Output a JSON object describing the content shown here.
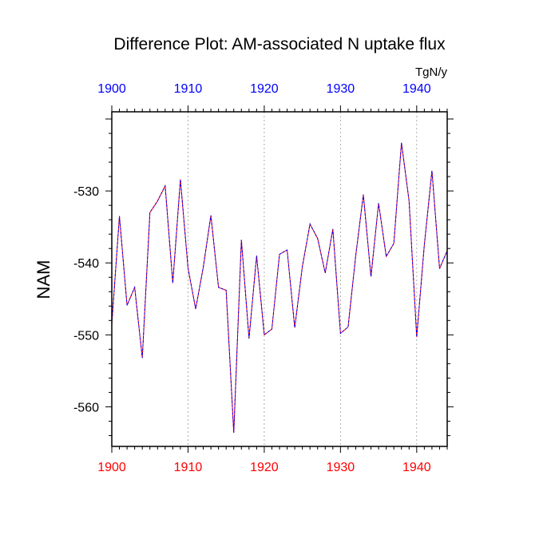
{
  "chart_data": {
    "type": "line",
    "title": "Difference Plot: AM-associated N uptake flux",
    "units": "TgN/y",
    "ylabel": "NAM",
    "xlim": [
      1900,
      1944
    ],
    "ylim": [
      -565.5,
      -519
    ],
    "xticks": [
      1900,
      1910,
      1920,
      1930,
      1940
    ],
    "yticks": [
      -530,
      -540,
      -550,
      -560
    ],
    "grid": "vertical dotted at major x ticks",
    "x": [
      1900,
      1901,
      1902,
      1903,
      1904,
      1905,
      1906,
      1907,
      1908,
      1909,
      1910,
      1911,
      1912,
      1913,
      1914,
      1915,
      1916,
      1917,
      1918,
      1919,
      1920,
      1921,
      1922,
      1923,
      1924,
      1925,
      1926,
      1927,
      1928,
      1929,
      1930,
      1931,
      1932,
      1933,
      1934,
      1935,
      1936,
      1937,
      1938,
      1939,
      1940,
      1941,
      1942,
      1943,
      1944
    ],
    "series": [
      {
        "color": "#ff0000",
        "values": [
          -548.5,
          -533.5,
          -545.9,
          -543.4,
          -553.2,
          -533.0,
          -531.4,
          -529.3,
          -542.8,
          -528.4,
          -540.7,
          -546.4,
          -540.6,
          -533.4,
          -543.4,
          -543.8,
          -563.6,
          -536.8,
          -550.5,
          -539.0,
          -550.0,
          -549.2,
          -538.8,
          -538.2,
          -549.0,
          -540.5,
          -534.6,
          -536.6,
          -541.4,
          -535.3,
          -549.8,
          -548.9,
          -539.0,
          -530.5,
          -541.9,
          -531.7,
          -539.1,
          -537.3,
          -523.3,
          -531.4,
          -550.3,
          -537.5,
          -527.2,
          -540.8,
          -538.3
        ]
      },
      {
        "color": "#0000ff",
        "values": [
          -548.5,
          -533.5,
          -545.9,
          -543.4,
          -553.2,
          -533.0,
          -531.4,
          -529.3,
          -542.8,
          -528.4,
          -540.7,
          -546.4,
          -540.6,
          -533.4,
          -543.4,
          -543.8,
          -563.6,
          -536.8,
          -550.5,
          -539.0,
          -550.0,
          -549.2,
          -538.8,
          -538.2,
          -549.0,
          -540.5,
          -534.6,
          -536.6,
          -541.4,
          -535.3,
          -549.8,
          -548.9,
          -539.0,
          -530.5,
          -541.9,
          -531.7,
          -539.1,
          -537.3,
          -523.3,
          -531.4,
          -550.3,
          -537.5,
          -527.2,
          -540.8,
          -538.3
        ]
      }
    ]
  },
  "colors": {
    "bottom_axis_labels": "#ff0000",
    "top_axis_labels": "#0000ff",
    "frame": "#000000",
    "grid": "#999999"
  }
}
